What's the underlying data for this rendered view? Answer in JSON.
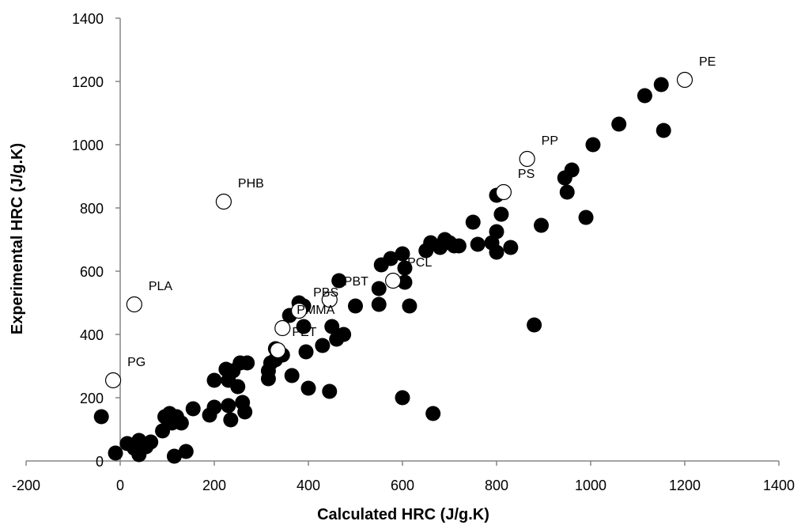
{
  "chart_data": {
    "type": "scatter",
    "title": "",
    "xlabel": "Calculated HRC (J/g.K)",
    "ylabel": "Experimental HRC (J/g.K)",
    "xlim": [
      -200,
      1400
    ],
    "ylim": [
      0,
      1400
    ],
    "x_ticks": [
      "-200",
      "0",
      "200",
      "400",
      "600",
      "800",
      "1000",
      "1200",
      "1400"
    ],
    "y_ticks": [
      "0",
      "200",
      "400",
      "600",
      "800",
      "1000",
      "1200",
      "1400"
    ],
    "grid": false,
    "legend": "none",
    "series": [
      {
        "marker": "filled-circle",
        "color": "#000000",
        "points": [
          [
            -40,
            140
          ],
          [
            -10,
            25
          ],
          [
            15,
            55
          ],
          [
            30,
            40
          ],
          [
            40,
            65
          ],
          [
            40,
            20
          ],
          [
            55,
            45
          ],
          [
            65,
            60
          ],
          [
            90,
            95
          ],
          [
            95,
            140
          ],
          [
            105,
            150
          ],
          [
            110,
            120
          ],
          [
            115,
            15
          ],
          [
            120,
            140
          ],
          [
            130,
            120
          ],
          [
            140,
            30
          ],
          [
            155,
            165
          ],
          [
            190,
            145
          ],
          [
            200,
            170
          ],
          [
            200,
            255
          ],
          [
            225,
            290
          ],
          [
            230,
            175
          ],
          [
            230,
            255
          ],
          [
            235,
            130
          ],
          [
            240,
            285
          ],
          [
            250,
            235
          ],
          [
            255,
            310
          ],
          [
            260,
            185
          ],
          [
            265,
            155
          ],
          [
            270,
            310
          ],
          [
            315,
            260
          ],
          [
            315,
            285
          ],
          [
            320,
            310
          ],
          [
            330,
            320
          ],
          [
            330,
            355
          ],
          [
            345,
            335
          ],
          [
            360,
            460
          ],
          [
            365,
            270
          ],
          [
            380,
            500
          ],
          [
            390,
            490
          ],
          [
            390,
            425
          ],
          [
            395,
            345
          ],
          [
            400,
            230
          ],
          [
            430,
            365
          ],
          [
            445,
            220
          ],
          [
            450,
            425
          ],
          [
            460,
            385
          ],
          [
            465,
            570
          ],
          [
            475,
            400
          ],
          [
            500,
            490
          ],
          [
            550,
            545
          ],
          [
            550,
            495
          ],
          [
            555,
            620
          ],
          [
            575,
            640
          ],
          [
            600,
            655
          ],
          [
            600,
            200
          ],
          [
            605,
            610
          ],
          [
            605,
            565
          ],
          [
            615,
            490
          ],
          [
            650,
            665
          ],
          [
            660,
            690
          ],
          [
            665,
            150
          ],
          [
            680,
            675
          ],
          [
            690,
            700
          ],
          [
            700,
            690
          ],
          [
            710,
            680
          ],
          [
            720,
            680
          ],
          [
            750,
            755
          ],
          [
            760,
            685
          ],
          [
            790,
            690
          ],
          [
            800,
            840
          ],
          [
            800,
            725
          ],
          [
            800,
            660
          ],
          [
            810,
            780
          ],
          [
            830,
            675
          ],
          [
            880,
            430
          ],
          [
            895,
            745
          ],
          [
            945,
            895
          ],
          [
            950,
            850
          ],
          [
            960,
            920
          ],
          [
            990,
            770
          ],
          [
            1005,
            1000
          ],
          [
            1060,
            1065
          ],
          [
            1115,
            1155
          ],
          [
            1150,
            1190
          ],
          [
            1155,
            1045
          ]
        ]
      },
      {
        "marker": "open-circle",
        "color": "#000000",
        "points": [
          {
            "x": -15,
            "y": 255,
            "label": "PG"
          },
          {
            "x": 30,
            "y": 495,
            "label": "PLA"
          },
          {
            "x": 220,
            "y": 820,
            "label": "PHB"
          },
          {
            "x": 335,
            "y": 350,
            "label": "PET"
          },
          {
            "x": 345,
            "y": 420,
            "label": "PMMA"
          },
          {
            "x": 380,
            "y": 475,
            "label": "PBS"
          },
          {
            "x": 445,
            "y": 510,
            "label": "PBT"
          },
          {
            "x": 580,
            "y": 570,
            "label": "PCL"
          },
          {
            "x": 815,
            "y": 850,
            "label": "PS"
          },
          {
            "x": 865,
            "y": 955,
            "label": "PP"
          },
          {
            "x": 1200,
            "y": 1205,
            "label": "PE"
          }
        ]
      }
    ]
  }
}
